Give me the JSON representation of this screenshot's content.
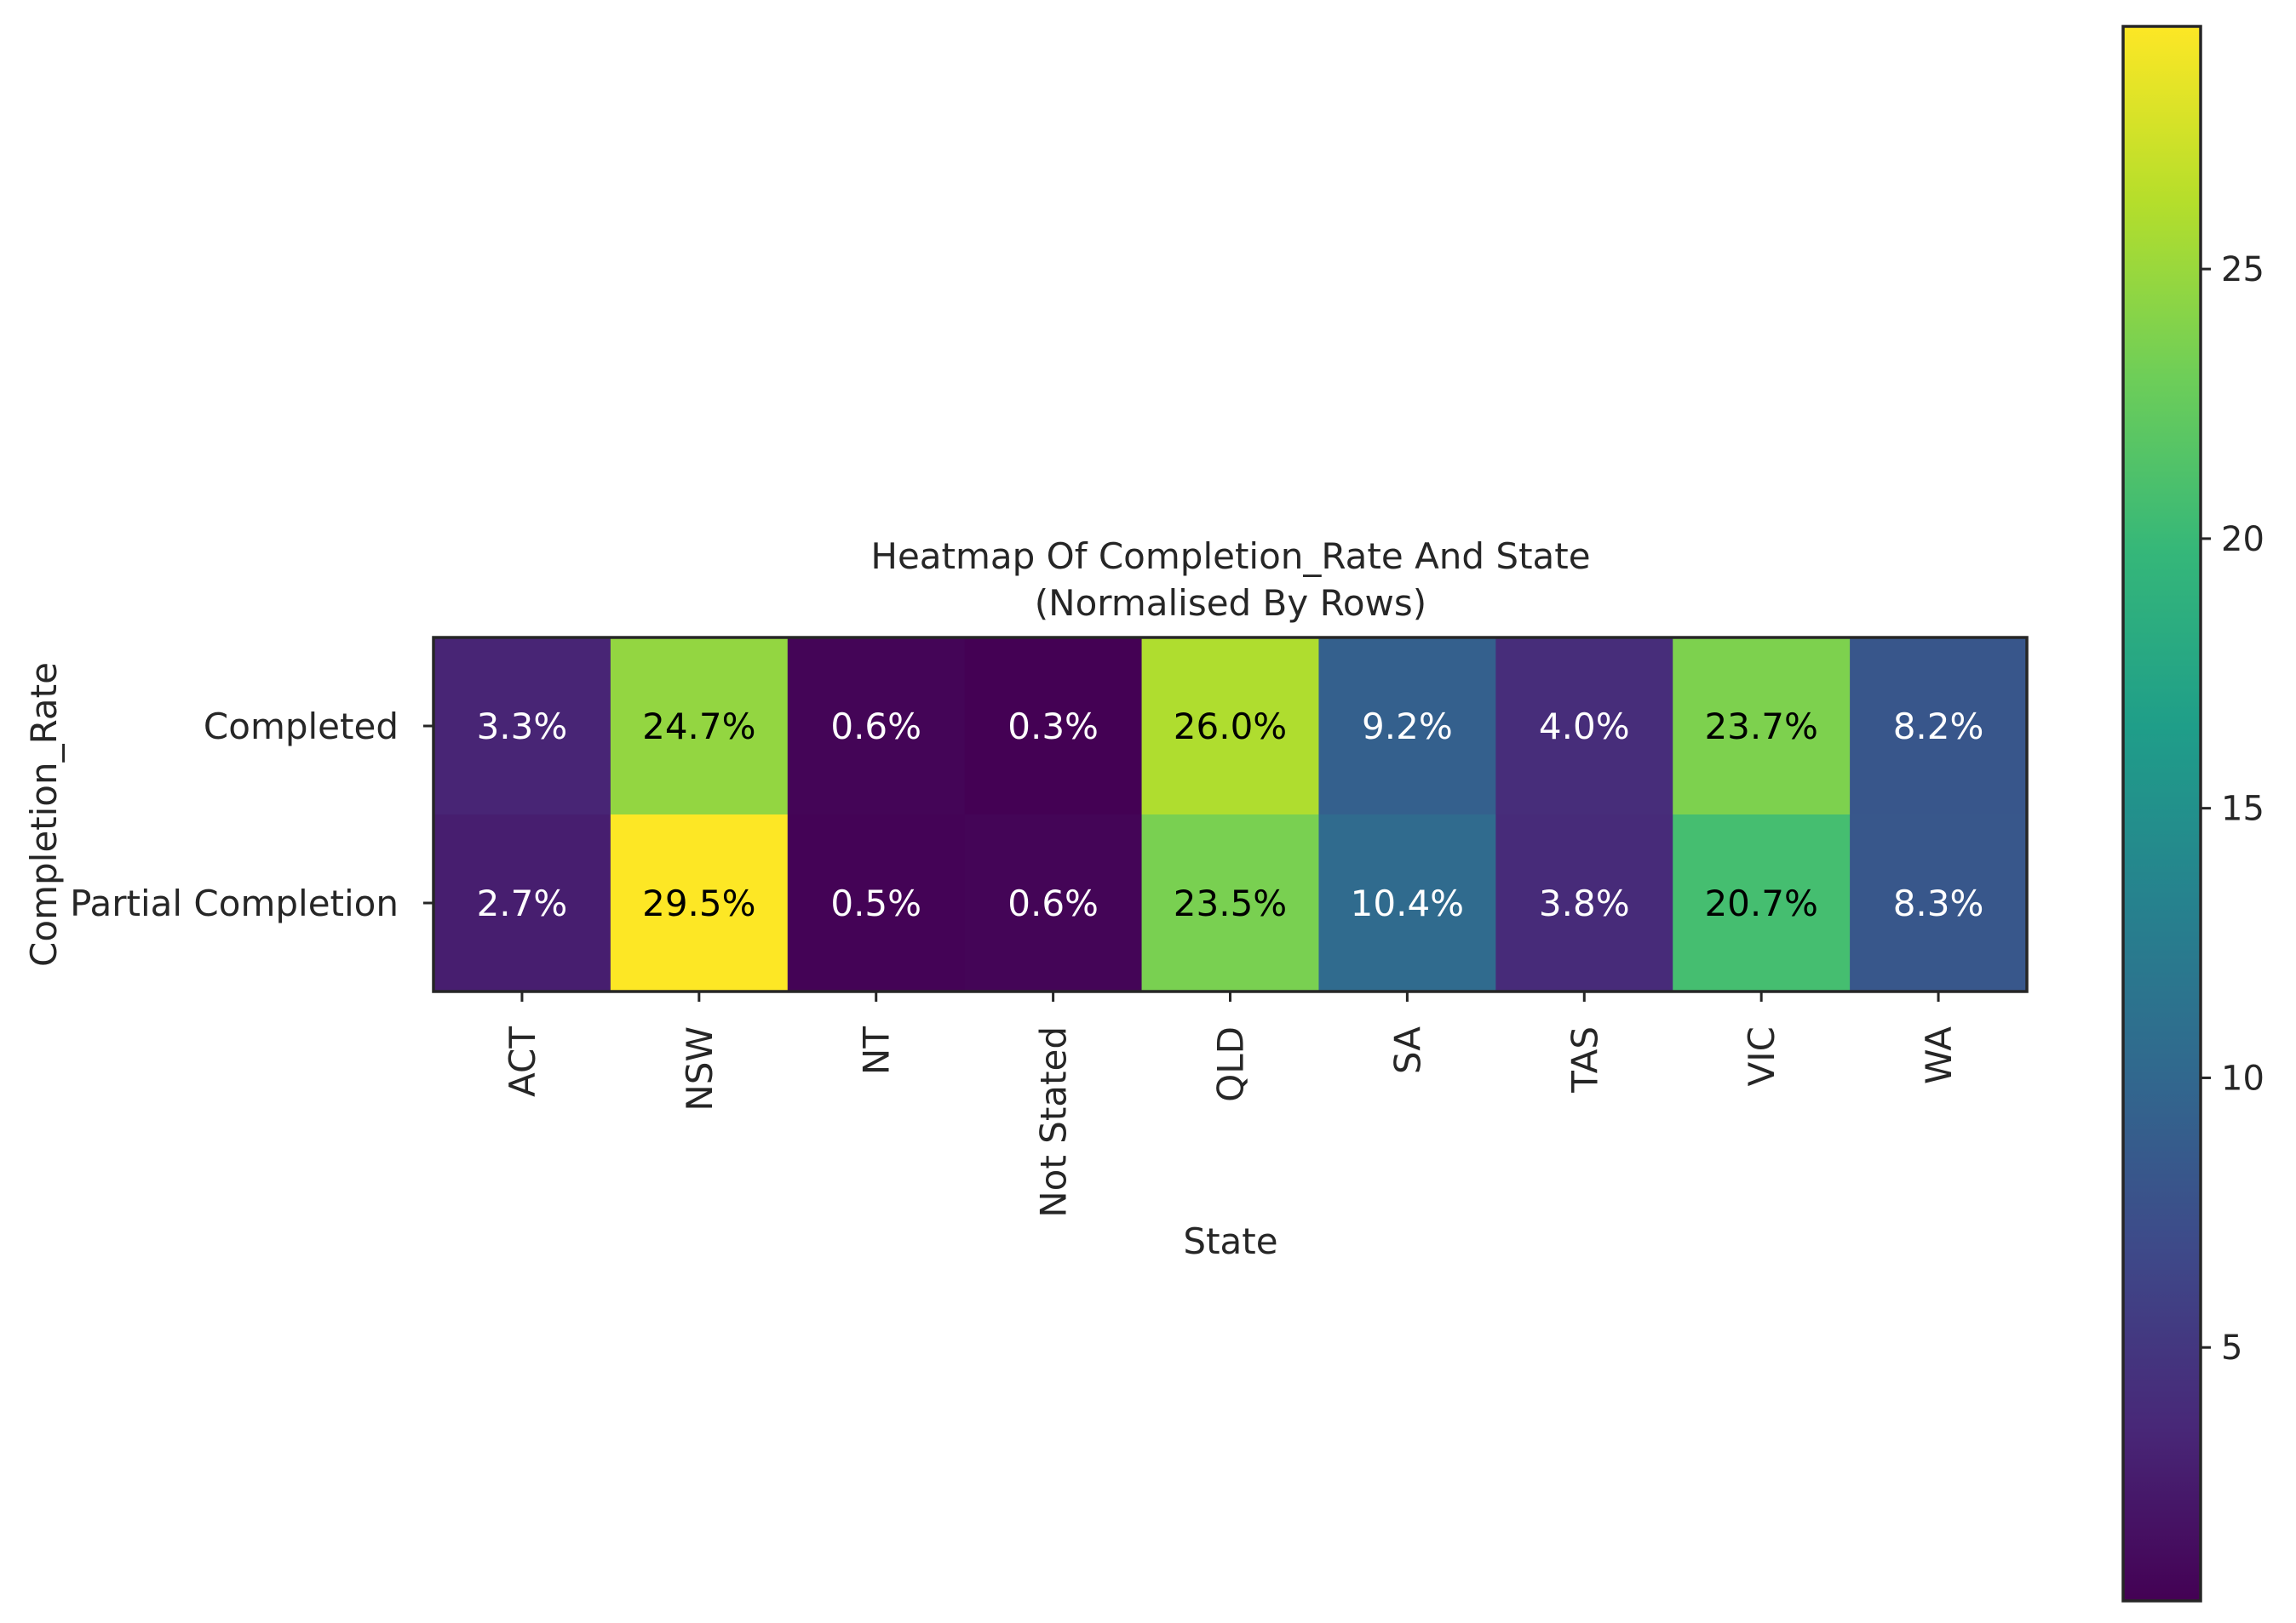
{
  "chart_data": {
    "type": "heatmap",
    "title": "Heatmap Of Completion_Rate And State",
    "subtitle": "(Normalised By Rows)",
    "xlabel": "State",
    "ylabel": "Completion_Rate",
    "x_categories": [
      "ACT",
      "NSW",
      "NT",
      "Not Stated",
      "QLD",
      "SA",
      "TAS",
      "VIC",
      "WA"
    ],
    "y_categories": [
      "Completed",
      "Partial Completion"
    ],
    "values": [
      [
        3.3,
        24.7,
        0.6,
        0.3,
        26.0,
        9.2,
        4.0,
        23.7,
        8.2
      ],
      [
        2.7,
        29.5,
        0.5,
        0.6,
        23.5,
        10.4,
        3.8,
        20.7,
        8.3
      ]
    ],
    "cell_labels": [
      [
        "3.3%",
        "24.7%",
        "0.6%",
        "0.3%",
        "26.0%",
        "9.2%",
        "4.0%",
        "23.7%",
        "8.2%"
      ],
      [
        "2.7%",
        "29.5%",
        "0.5%",
        "0.6%",
        "23.5%",
        "10.4%",
        "3.8%",
        "20.7%",
        "8.3%"
      ]
    ],
    "colormap": "viridis",
    "colorbar": {
      "range": [
        0.3,
        29.5
      ],
      "ticks": [
        5,
        10,
        15,
        20,
        25
      ],
      "tick_labels": [
        "5",
        "10",
        "15",
        "20",
        "25"
      ]
    },
    "label_colors": {
      "light": "#ffffff",
      "dark": "#000000"
    }
  }
}
